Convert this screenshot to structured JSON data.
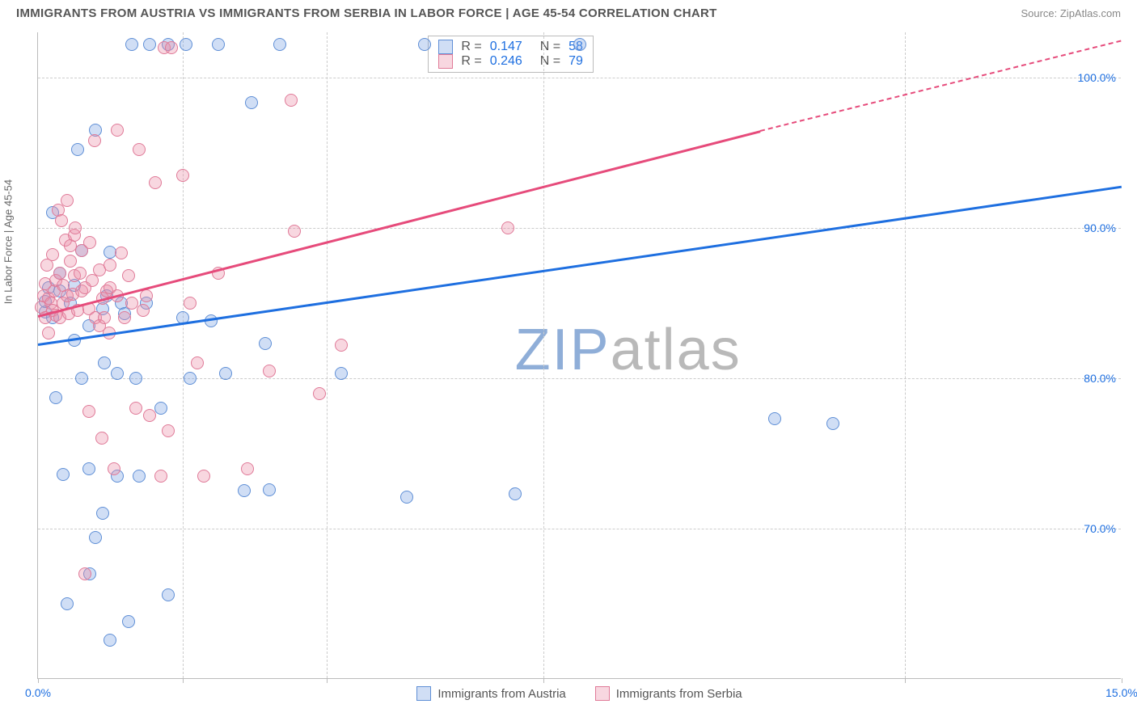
{
  "title": "IMMIGRANTS FROM AUSTRIA VS IMMIGRANTS FROM SERBIA IN LABOR FORCE | AGE 45-54 CORRELATION CHART",
  "source": "Source: ZipAtlas.com",
  "ylabel": "In Labor Force | Age 45-54",
  "watermark_zip": "ZIP",
  "watermark_atlas": "atlas",
  "chart": {
    "type": "scatter",
    "xlim": [
      0,
      15
    ],
    "ylim": [
      60,
      103
    ],
    "y_ticks": [
      70,
      80,
      90,
      100
    ],
    "y_tick_labels": [
      "70.0%",
      "80.0%",
      "90.0%",
      "100.0%"
    ],
    "x_ticks": [
      0,
      15
    ],
    "x_tick_labels": [
      "0.0%",
      "15.0%"
    ],
    "v_grid_at": [
      2,
      4,
      7,
      12
    ],
    "background_color": "#ffffff",
    "grid_color": "#cccccc",
    "axis_color": "#bbbbbb",
    "marker_radius": 8,
    "series": [
      {
        "name": "Immigrants from Austria",
        "short": "austria",
        "fill": "rgba(120,160,225,0.35)",
        "stroke": "#5f8fd6",
        "trend_color": "#1e6fe0",
        "legend_fill": "rgba(120,160,225,0.35)",
        "R": 0.147,
        "N": 58,
        "trend": {
          "x1": 0,
          "y1": 82.3,
          "x2": 15,
          "y2": 92.8
        },
        "points": [
          [
            0.1,
            84.4
          ],
          [
            0.1,
            85.1
          ],
          [
            0.15,
            86.0
          ],
          [
            0.2,
            84.0
          ],
          [
            0.2,
            91.0
          ],
          [
            0.25,
            78.7
          ],
          [
            0.3,
            85.8
          ],
          [
            0.3,
            87.0
          ],
          [
            0.35,
            73.6
          ],
          [
            0.4,
            65.0
          ],
          [
            0.45,
            85.0
          ],
          [
            0.5,
            82.5
          ],
          [
            0.5,
            86.2
          ],
          [
            0.55,
            95.2
          ],
          [
            0.6,
            88.5
          ],
          [
            0.6,
            80.0
          ],
          [
            0.7,
            83.5
          ],
          [
            0.7,
            74.0
          ],
          [
            0.72,
            67.0
          ],
          [
            0.8,
            69.4
          ],
          [
            0.8,
            96.5
          ],
          [
            0.9,
            84.6
          ],
          [
            0.9,
            71.0
          ],
          [
            0.92,
            81.0
          ],
          [
            0.95,
            85.5
          ],
          [
            1.0,
            88.4
          ],
          [
            1.0,
            62.6
          ],
          [
            1.1,
            80.3
          ],
          [
            1.1,
            73.5
          ],
          [
            1.15,
            85.0
          ],
          [
            1.2,
            84.3
          ],
          [
            1.25,
            63.8
          ],
          [
            1.3,
            102.2
          ],
          [
            1.35,
            80.0
          ],
          [
            1.4,
            73.5
          ],
          [
            1.5,
            85.0
          ],
          [
            1.55,
            102.2
          ],
          [
            1.7,
            78.0
          ],
          [
            1.8,
            65.6
          ],
          [
            1.8,
            102.2
          ],
          [
            2.0,
            84.0
          ],
          [
            2.05,
            102.2
          ],
          [
            2.1,
            80.0
          ],
          [
            2.4,
            83.8
          ],
          [
            2.5,
            102.2
          ],
          [
            2.6,
            80.3
          ],
          [
            2.85,
            72.5
          ],
          [
            2.95,
            98.3
          ],
          [
            3.15,
            82.3
          ],
          [
            3.2,
            72.6
          ],
          [
            3.35,
            102.2
          ],
          [
            4.2,
            80.3
          ],
          [
            5.1,
            72.1
          ],
          [
            5.35,
            102.2
          ],
          [
            6.6,
            72.3
          ],
          [
            7.5,
            102.2
          ],
          [
            10.2,
            77.3
          ],
          [
            11.0,
            77.0
          ]
        ]
      },
      {
        "name": "Immigrants from Serbia",
        "short": "serbia",
        "fill": "rgba(235,140,165,0.35)",
        "stroke": "#e07a98",
        "trend_color": "#e64b7b",
        "legend_fill": "rgba(235,140,165,0.35)",
        "R": 0.246,
        "N": 79,
        "trend": {
          "x1": 0,
          "y1": 84.2,
          "x2": 10.0,
          "y2": 96.5,
          "dash_to_x": 15,
          "dash_to_y": 102.5
        },
        "points": [
          [
            0.05,
            84.7
          ],
          [
            0.08,
            85.5
          ],
          [
            0.1,
            84.0
          ],
          [
            0.1,
            86.3
          ],
          [
            0.12,
            87.5
          ],
          [
            0.15,
            83.0
          ],
          [
            0.15,
            85.3
          ],
          [
            0.18,
            85.0
          ],
          [
            0.2,
            88.2
          ],
          [
            0.2,
            84.5
          ],
          [
            0.22,
            85.8
          ],
          [
            0.25,
            86.5
          ],
          [
            0.25,
            84.2
          ],
          [
            0.28,
            91.2
          ],
          [
            0.3,
            87.0
          ],
          [
            0.3,
            84.0
          ],
          [
            0.32,
            90.5
          ],
          [
            0.35,
            86.2
          ],
          [
            0.35,
            85.0
          ],
          [
            0.38,
            89.2
          ],
          [
            0.4,
            85.5
          ],
          [
            0.4,
            91.8
          ],
          [
            0.42,
            84.3
          ],
          [
            0.45,
            87.8
          ],
          [
            0.45,
            88.8
          ],
          [
            0.48,
            85.6
          ],
          [
            0.5,
            89.5
          ],
          [
            0.5,
            86.8
          ],
          [
            0.52,
            90.0
          ],
          [
            0.55,
            84.5
          ],
          [
            0.58,
            87.0
          ],
          [
            0.6,
            85.8
          ],
          [
            0.6,
            88.5
          ],
          [
            0.65,
            67.0
          ],
          [
            0.65,
            86.0
          ],
          [
            0.7,
            77.8
          ],
          [
            0.7,
            84.6
          ],
          [
            0.72,
            89.0
          ],
          [
            0.75,
            86.5
          ],
          [
            0.78,
            95.8
          ],
          [
            0.8,
            84.0
          ],
          [
            0.85,
            83.5
          ],
          [
            0.85,
            87.2
          ],
          [
            0.88,
            76.0
          ],
          [
            0.9,
            85.3
          ],
          [
            0.92,
            84.0
          ],
          [
            0.95,
            85.8
          ],
          [
            0.98,
            83.0
          ],
          [
            1.0,
            86.0
          ],
          [
            1.0,
            87.5
          ],
          [
            1.05,
            74.0
          ],
          [
            1.1,
            85.5
          ],
          [
            1.1,
            96.5
          ],
          [
            1.15,
            88.3
          ],
          [
            1.2,
            84.0
          ],
          [
            1.25,
            86.8
          ],
          [
            1.3,
            85.0
          ],
          [
            1.35,
            78.0
          ],
          [
            1.4,
            95.2
          ],
          [
            1.45,
            84.5
          ],
          [
            1.5,
            85.5
          ],
          [
            1.55,
            77.5
          ],
          [
            1.62,
            93.0
          ],
          [
            1.7,
            73.5
          ],
          [
            1.75,
            102.0
          ],
          [
            1.8,
            76.5
          ],
          [
            1.85,
            102.0
          ],
          [
            2.0,
            93.5
          ],
          [
            2.1,
            85.0
          ],
          [
            2.2,
            81.0
          ],
          [
            2.3,
            73.5
          ],
          [
            2.5,
            87.0
          ],
          [
            2.9,
            74.0
          ],
          [
            3.2,
            80.5
          ],
          [
            3.5,
            98.5
          ],
          [
            3.55,
            89.8
          ],
          [
            3.9,
            79.0
          ],
          [
            4.2,
            82.2
          ],
          [
            6.5,
            90.0
          ]
        ]
      }
    ]
  },
  "stats_labels": {
    "R": "R =",
    "N": "N ="
  },
  "xtick_color": "#1e6fe0",
  "ytick_color": "#1e6fe0",
  "watermark_color_zip": "#8faed8",
  "watermark_color_atlas": "#b9b9b9"
}
